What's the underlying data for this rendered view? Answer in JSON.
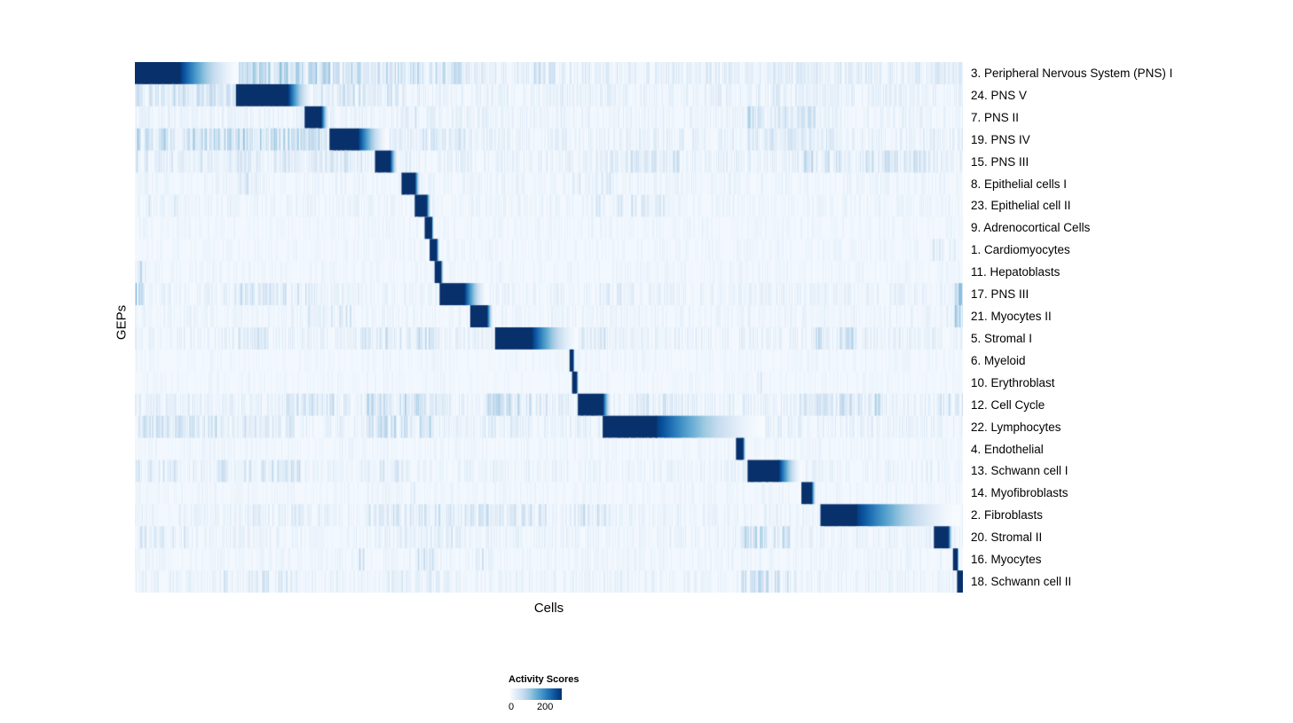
{
  "chart_data": {
    "type": "heatmap",
    "xlabel": "Cells",
    "ylabel": "GEPs",
    "legend": {
      "title": "Activity Scores",
      "min": 0,
      "max": 200
    },
    "colormap": [
      "#f7fbff",
      "#deebf7",
      "#c6dbef",
      "#9ecae1",
      "#6baed6",
      "#4292c6",
      "#2171b5",
      "#08519c",
      "#08306b"
    ],
    "rows": [
      {
        "label": "3. Peripheral Nervous System (PNS) I",
        "block": {
          "start": 0.0,
          "end": 0.055,
          "fade_end": 0.125
        },
        "sparse": 0.16,
        "noise": [
          {
            "start": 0.125,
            "end": 0.24,
            "density": 0.7,
            "strength": 0.45
          },
          {
            "start": 0.24,
            "end": 0.4,
            "density": 0.45,
            "strength": 0.35
          },
          {
            "start": 0.48,
            "end": 0.52,
            "density": 0.35,
            "strength": 0.3
          },
          {
            "start": 0.75,
            "end": 1.0,
            "density": 0.25,
            "strength": 0.2
          }
        ]
      },
      {
        "label": "24. PNS V",
        "block": {
          "start": 0.122,
          "end": 0.185,
          "fade_end": 0.215
        },
        "sparse": 0.13,
        "noise": [
          {
            "start": 0.0,
            "end": 0.12,
            "density": 0.45,
            "strength": 0.3
          },
          {
            "start": 0.22,
            "end": 0.33,
            "density": 0.35,
            "strength": 0.3
          },
          {
            "start": 0.75,
            "end": 0.85,
            "density": 0.2,
            "strength": 0.2
          }
        ]
      },
      {
        "label": "7. PNS II",
        "block": {
          "start": 0.205,
          "end": 0.225,
          "fade_end": 0.235
        },
        "sparse": 0.1,
        "noise": [
          {
            "start": 0.74,
            "end": 0.82,
            "density": 0.55,
            "strength": 0.35
          },
          {
            "start": 0.3,
            "end": 0.4,
            "density": 0.15,
            "strength": 0.2
          }
        ]
      },
      {
        "label": "19. PNS IV",
        "block": {
          "start": 0.235,
          "end": 0.27,
          "fade_end": 0.305
        },
        "sparse": 0.13,
        "noise": [
          {
            "start": 0.0,
            "end": 0.23,
            "density": 0.6,
            "strength": 0.4
          },
          {
            "start": 0.33,
            "end": 0.4,
            "density": 0.3,
            "strength": 0.25
          },
          {
            "start": 0.74,
            "end": 0.86,
            "density": 0.3,
            "strength": 0.25
          }
        ]
      },
      {
        "label": "15. PNS III",
        "block": {
          "start": 0.29,
          "end": 0.308,
          "fade_end": 0.318
        },
        "sparse": 0.12,
        "noise": [
          {
            "start": 0.0,
            "end": 0.28,
            "density": 0.28,
            "strength": 0.25
          },
          {
            "start": 0.55,
            "end": 0.66,
            "density": 0.35,
            "strength": 0.3
          },
          {
            "start": 0.8,
            "end": 0.97,
            "density": 0.4,
            "strength": 0.3
          }
        ]
      },
      {
        "label": "8. Epithelial cells I",
        "block": {
          "start": 0.322,
          "end": 0.338,
          "fade_end": 0.345
        },
        "sparse": 0.08,
        "noise": [
          {
            "start": 0.12,
            "end": 0.15,
            "density": 0.3,
            "strength": 0.3
          },
          {
            "start": 0.5,
            "end": 0.6,
            "density": 0.15,
            "strength": 0.2
          }
        ]
      },
      {
        "label": "23. Epithelial cell II",
        "block": {
          "start": 0.338,
          "end": 0.352,
          "fade_end": 0.358
        },
        "sparse": 0.08,
        "noise": [
          {
            "start": 0.55,
            "end": 0.64,
            "density": 0.3,
            "strength": 0.25
          },
          {
            "start": 0.0,
            "end": 0.05,
            "density": 0.2,
            "strength": 0.2
          }
        ]
      },
      {
        "label": "9. Adrenocortical Cells",
        "block": {
          "start": 0.35,
          "end": 0.358,
          "fade_end": 0.361
        },
        "sparse": 0.06,
        "noise": []
      },
      {
        "label": "1. Cardiomyocytes",
        "block": {
          "start": 0.356,
          "end": 0.364,
          "fade_end": 0.368
        },
        "sparse": 0.06,
        "noise": [
          {
            "start": 0.96,
            "end": 0.99,
            "density": 0.3,
            "strength": 0.25
          }
        ]
      },
      {
        "label": "11. Hepatoblasts",
        "block": {
          "start": 0.362,
          "end": 0.369,
          "fade_end": 0.373
        },
        "sparse": 0.06,
        "noise": [
          {
            "start": 0.0,
            "end": 0.02,
            "density": 0.3,
            "strength": 0.3
          }
        ]
      },
      {
        "label": "17. PNS III",
        "block": {
          "start": 0.368,
          "end": 0.398,
          "fade_end": 0.425
        },
        "sparse": 0.1,
        "noise": [
          {
            "start": 0.0,
            "end": 0.01,
            "density": 0.8,
            "strength": 0.5
          },
          {
            "start": 0.12,
            "end": 0.22,
            "density": 0.35,
            "strength": 0.3
          },
          {
            "start": 0.55,
            "end": 0.6,
            "density": 0.2,
            "strength": 0.2
          },
          {
            "start": 0.99,
            "end": 1.0,
            "density": 0.8,
            "strength": 0.5
          }
        ]
      },
      {
        "label": "21. Myocytes II",
        "block": {
          "start": 0.405,
          "end": 0.425,
          "fade_end": 0.433
        },
        "sparse": 0.08,
        "noise": [
          {
            "start": 0.2,
            "end": 0.27,
            "density": 0.3,
            "strength": 0.25
          },
          {
            "start": 0.99,
            "end": 1.0,
            "density": 0.7,
            "strength": 0.5
          }
        ]
      },
      {
        "label": "5. Stromal I",
        "block": {
          "start": 0.435,
          "end": 0.48,
          "fade_end": 0.535
        },
        "sparse": 0.12,
        "noise": [
          {
            "start": 0.12,
            "end": 0.16,
            "density": 0.4,
            "strength": 0.3
          },
          {
            "start": 0.27,
            "end": 0.36,
            "density": 0.35,
            "strength": 0.3
          },
          {
            "start": 0.82,
            "end": 0.87,
            "density": 0.45,
            "strength": 0.35
          },
          {
            "start": 0.54,
            "end": 0.57,
            "density": 0.3,
            "strength": 0.3
          }
        ]
      },
      {
        "label": "6. Myeloid",
        "block": {
          "start": 0.525,
          "end": 0.529,
          "fade_end": 0.531
        },
        "sparse": 0.05,
        "noise": []
      },
      {
        "label": "10. Erythroblast",
        "block": {
          "start": 0.528,
          "end": 0.533,
          "fade_end": 0.536
        },
        "sparse": 0.05,
        "noise": [
          {
            "start": 0.74,
            "end": 0.76,
            "density": 0.2,
            "strength": 0.2
          }
        ]
      },
      {
        "label": "12. Cell Cycle",
        "block": {
          "start": 0.535,
          "end": 0.565,
          "fade_end": 0.576
        },
        "sparse": 0.15,
        "noise": [
          {
            "start": 0.18,
            "end": 0.24,
            "density": 0.4,
            "strength": 0.3
          },
          {
            "start": 0.28,
            "end": 0.38,
            "density": 0.45,
            "strength": 0.35
          },
          {
            "start": 0.42,
            "end": 0.5,
            "density": 0.45,
            "strength": 0.35
          },
          {
            "start": 0.6,
            "end": 0.65,
            "density": 0.3,
            "strength": 0.25
          },
          {
            "start": 0.8,
            "end": 0.9,
            "density": 0.45,
            "strength": 0.35
          },
          {
            "start": 0.97,
            "end": 1.0,
            "density": 0.3,
            "strength": 0.3
          }
        ]
      },
      {
        "label": "22. Lymphocytes",
        "block": {
          "start": 0.565,
          "end": 0.63,
          "fade_end": 0.76
        },
        "sparse": 0.12,
        "noise": [
          {
            "start": 0.0,
            "end": 0.1,
            "density": 0.45,
            "strength": 0.35
          },
          {
            "start": 0.12,
            "end": 0.2,
            "density": 0.3,
            "strength": 0.25
          },
          {
            "start": 0.28,
            "end": 0.36,
            "density": 0.45,
            "strength": 0.35
          },
          {
            "start": 0.42,
            "end": 0.47,
            "density": 0.3,
            "strength": 0.25
          }
        ]
      },
      {
        "label": "4. Endothelial",
        "block": {
          "start": 0.726,
          "end": 0.734,
          "fade_end": 0.738
        },
        "sparse": 0.06,
        "noise": []
      },
      {
        "label": "13. Schwann cell I",
        "block": {
          "start": 0.74,
          "end": 0.778,
          "fade_end": 0.805
        },
        "sparse": 0.1,
        "noise": [
          {
            "start": 0.1,
            "end": 0.2,
            "density": 0.35,
            "strength": 0.3
          },
          {
            "start": 0.28,
            "end": 0.33,
            "density": 0.3,
            "strength": 0.25
          },
          {
            "start": 0.0,
            "end": 0.05,
            "density": 0.3,
            "strength": 0.25
          }
        ]
      },
      {
        "label": "14. Myofibroblasts",
        "block": {
          "start": 0.805,
          "end": 0.817,
          "fade_end": 0.823
        },
        "sparse": 0.06,
        "noise": [
          {
            "start": 0.3,
            "end": 0.35,
            "density": 0.15,
            "strength": 0.2
          }
        ]
      },
      {
        "label": "2. Fibroblasts",
        "block": {
          "start": 0.828,
          "end": 0.872,
          "fade_end": 0.995
        },
        "sparse": 0.1,
        "noise": [
          {
            "start": 0.28,
            "end": 0.5,
            "density": 0.35,
            "strength": 0.3
          },
          {
            "start": 0.53,
            "end": 0.57,
            "density": 0.35,
            "strength": 0.3
          },
          {
            "start": 0.12,
            "end": 0.2,
            "density": 0.2,
            "strength": 0.2
          }
        ]
      },
      {
        "label": "20. Stromal II",
        "block": {
          "start": 0.965,
          "end": 0.982,
          "fade_end": 0.988
        },
        "sparse": 0.1,
        "noise": [
          {
            "start": 0.73,
            "end": 0.79,
            "density": 0.45,
            "strength": 0.35
          },
          {
            "start": 0.3,
            "end": 0.4,
            "density": 0.2,
            "strength": 0.2
          },
          {
            "start": 0.0,
            "end": 0.06,
            "density": 0.3,
            "strength": 0.25
          }
        ]
      },
      {
        "label": "16. Myocytes",
        "block": {
          "start": 0.988,
          "end": 0.993,
          "fade_end": 0.995
        },
        "sparse": 0.07,
        "noise": [
          {
            "start": 0.34,
            "end": 0.36,
            "density": 0.4,
            "strength": 0.35
          },
          {
            "start": 0.41,
            "end": 0.43,
            "density": 0.3,
            "strength": 0.3
          },
          {
            "start": 0.26,
            "end": 0.28,
            "density": 0.3,
            "strength": 0.3
          }
        ]
      },
      {
        "label": "18. Schwann cell II",
        "block": {
          "start": 0.993,
          "end": 1.0,
          "fade_end": 1.0
        },
        "sparse": 0.1,
        "noise": [
          {
            "start": 0.73,
            "end": 0.8,
            "density": 0.45,
            "strength": 0.35
          },
          {
            "start": 0.1,
            "end": 0.2,
            "density": 0.25,
            "strength": 0.25
          },
          {
            "start": 0.3,
            "end": 0.4,
            "density": 0.2,
            "strength": 0.2
          }
        ]
      }
    ]
  }
}
